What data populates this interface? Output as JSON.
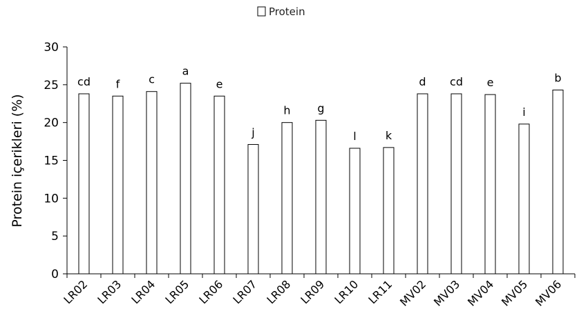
{
  "chart_data": {
    "type": "bar",
    "legend": {
      "label": "Protein",
      "position": "top"
    },
    "ylabel": "Protein içerikleri (%)",
    "xlabel": "",
    "ylim": [
      0,
      30
    ],
    "yticks": [
      0,
      5,
      10,
      15,
      20,
      25,
      30
    ],
    "grid": false,
    "bar_fill": "#ffffff",
    "bar_stroke": "#000000",
    "categories": [
      "LR02",
      "LR03",
      "LR04",
      "LR05",
      "LR06",
      "LR07",
      "LR08",
      "LR09",
      "LR10",
      "LR11",
      "MV02",
      "MV03",
      "MV04",
      "MV05",
      "MV06"
    ],
    "series": [
      {
        "name": "Protein",
        "values": [
          23.8,
          23.5,
          24.1,
          25.2,
          23.5,
          17.1,
          20.0,
          20.3,
          16.6,
          16.7,
          23.8,
          23.8,
          23.7,
          19.8,
          24.3
        ]
      }
    ],
    "annotations": [
      "cd",
      "f",
      "c",
      "a",
      "e",
      "j",
      "h",
      "g",
      "l",
      "k",
      "d",
      "cd",
      "e",
      "i",
      "b"
    ]
  }
}
